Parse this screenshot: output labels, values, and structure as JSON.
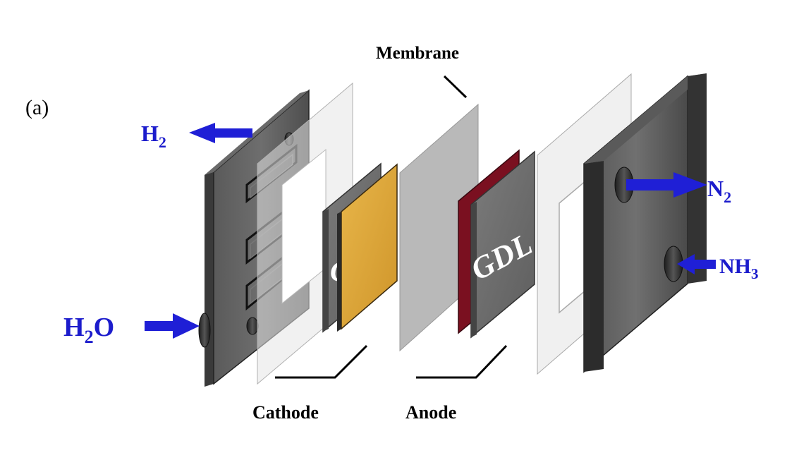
{
  "figure": {
    "panel_label": "(a)",
    "labels": {
      "membrane": "Membrane",
      "cathode": "Cathode",
      "anode": "Anode",
      "gdl": "GDL",
      "gdl_partial": "C"
    },
    "species": {
      "h2": {
        "base": "H",
        "sub": "2"
      },
      "h2o": {
        "base": "H",
        "sub": "2",
        "tail": "O"
      },
      "n2": {
        "base": "N",
        "sub": "2"
      },
      "nh3": {
        "base": "NH",
        "sub": "3"
      }
    },
    "colors": {
      "arrow": "#1f1fd6",
      "end_plate": "#4a4a4a",
      "gasket": "#d8d8d8",
      "membrane": "#b4b4b4",
      "gdl": "#707070",
      "cathode_catalyst": "#e0a93c",
      "anode_catalyst": "#7a1020"
    }
  }
}
